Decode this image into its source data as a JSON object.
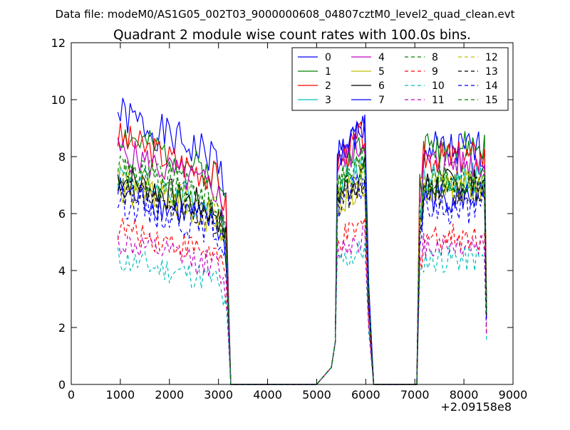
{
  "header": {
    "suptitle": "Data file: modeM0/AS1G05_002T03_9000000608_04807cztM0_level2_quad_clean.evt"
  },
  "chart_data": {
    "type": "line",
    "title": "Quadrant 2 module wise count rates with 100.0s bins.",
    "xlabel": "",
    "ylabel": "",
    "xlim": [
      0,
      9000
    ],
    "ylim": [
      0,
      12
    ],
    "x_offset_label": "+2.09158e8",
    "x_ticks": [
      0,
      1000,
      2000,
      3000,
      4000,
      5000,
      6000,
      7000,
      8000,
      9000
    ],
    "y_ticks": [
      0,
      2,
      4,
      6,
      8,
      10,
      12
    ],
    "x_tick_labels": [
      "0",
      "1000",
      "2000",
      "3000",
      "4000",
      "5000",
      "6000",
      "7000",
      "8000",
      "9000"
    ],
    "y_tick_labels": [
      "0",
      "2",
      "4",
      "6",
      "8",
      "10",
      "12"
    ],
    "grid": false,
    "legend_position": "upper-right",
    "legend_columns": 4,
    "gap_points": [
      [
        3250,
        0
      ],
      [
        3400,
        0
      ],
      [
        4000,
        0
      ],
      [
        5000,
        0
      ],
      [
        5250,
        0
      ],
      [
        6160,
        0
      ],
      [
        6500,
        0
      ],
      [
        7000,
        0
      ],
      [
        7040,
        0
      ]
    ],
    "series": [
      {
        "name": "0",
        "color": "#0000ff",
        "dash": "solid",
        "base": [
          9.5,
          8.7,
          8.2
        ],
        "spread": 0.35,
        "seed": 1
      },
      {
        "name": "1",
        "color": "#008000",
        "dash": "solid",
        "base": [
          8.8,
          8.2,
          8.3
        ],
        "spread": 0.3,
        "seed": 2
      },
      {
        "name": "2",
        "color": "#ff0000",
        "dash": "solid",
        "base": [
          8.7,
          8.5,
          8.0
        ],
        "spread": 0.3,
        "seed": 3
      },
      {
        "name": "3",
        "color": "#00bfbf",
        "dash": "solid",
        "base": [
          7.4,
          7.5,
          7.2
        ],
        "spread": 0.3,
        "seed": 4
      },
      {
        "name": "4",
        "color": "#bf00bf",
        "dash": "solid",
        "base": [
          8.2,
          8.3,
          7.8
        ],
        "spread": 0.3,
        "seed": 5
      },
      {
        "name": "5",
        "color": "#bfbf00",
        "dash": "solid",
        "base": [
          7.0,
          7.0,
          6.9
        ],
        "spread": 0.3,
        "seed": 6
      },
      {
        "name": "6",
        "color": "#000000",
        "dash": "solid",
        "base": [
          7.3,
          7.2,
          7.0
        ],
        "spread": 0.3,
        "seed": 7
      },
      {
        "name": "7",
        "color": "#0000ff",
        "dash": "solid",
        "base": [
          6.8,
          8.7,
          6.6
        ],
        "spread": 0.3,
        "seed": 8
      },
      {
        "name": "8",
        "color": "#008000",
        "dash": "dashed",
        "base": [
          7.8,
          7.6,
          7.2
        ],
        "spread": 0.3,
        "seed": 9
      },
      {
        "name": "9",
        "color": "#ff0000",
        "dash": "dashed",
        "base": [
          5.5,
          5.4,
          5.2
        ],
        "spread": 0.25,
        "seed": 10
      },
      {
        "name": "10",
        "color": "#00bfbf",
        "dash": "dashed",
        "base": [
          4.4,
          4.6,
          4.4
        ],
        "spread": 0.25,
        "seed": 11
      },
      {
        "name": "11",
        "color": "#bf00bf",
        "dash": "dashed",
        "base": [
          5.0,
          5.1,
          4.9
        ],
        "spread": 0.25,
        "seed": 12
      },
      {
        "name": "12",
        "color": "#bfbf00",
        "dash": "dashed",
        "base": [
          7.3,
          7.3,
          7.0
        ],
        "spread": 0.3,
        "seed": 13
      },
      {
        "name": "13",
        "color": "#000000",
        "dash": "dashed",
        "base": [
          6.9,
          7.0,
          6.7
        ],
        "spread": 0.3,
        "seed": 14
      },
      {
        "name": "14",
        "color": "#0000ff",
        "dash": "dashed",
        "base": [
          6.5,
          6.8,
          6.2
        ],
        "spread": 0.3,
        "seed": 15
      },
      {
        "name": "15",
        "color": "#008000",
        "dash": "dashed",
        "base": [
          7.5,
          7.6,
          7.1
        ],
        "spread": 0.3,
        "seed": 16
      }
    ]
  }
}
